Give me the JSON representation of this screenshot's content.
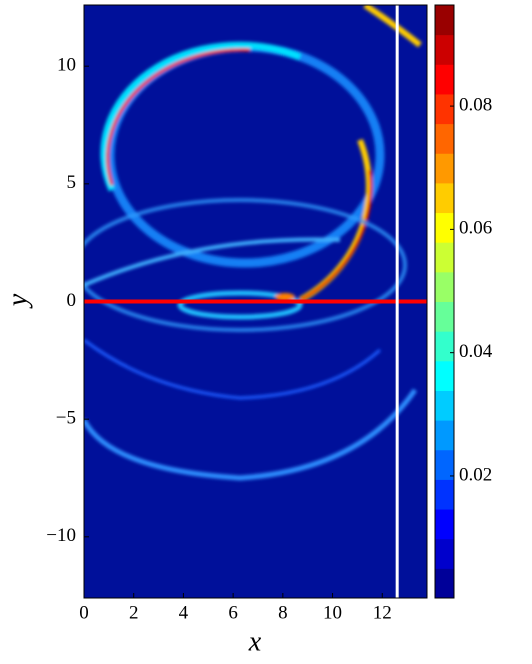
{
  "chart_data": {
    "type": "contour",
    "x_label": "x",
    "y_label": "y",
    "xlim": [
      0,
      13.8
    ],
    "ylim": [
      -12.6,
      12.6
    ],
    "xticks": [
      0,
      2,
      4,
      6,
      8,
      10,
      12
    ],
    "yticks": [
      {
        "value": -10,
        "label": "−10"
      },
      {
        "value": -5,
        "label": "−5"
      },
      0,
      5,
      10
    ],
    "hlines": [
      {
        "y": 0,
        "color": "#ff0000"
      }
    ],
    "vlines": [
      {
        "x": 12.6,
        "color": "#ffffff"
      }
    ],
    "colormap": "jet",
    "levels": 20,
    "clim": [
      0.0002,
      0.0964
    ],
    "cticks": [
      0.02,
      0.04,
      0.06,
      0.08
    ]
  }
}
